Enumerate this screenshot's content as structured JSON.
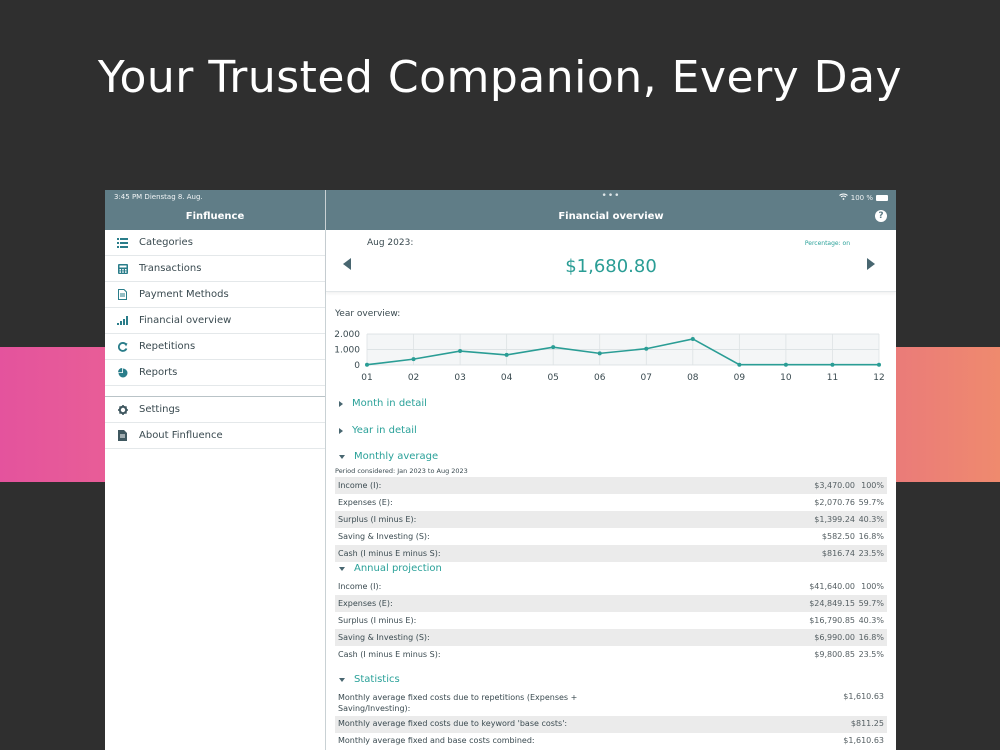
{
  "headline": "Your Trusted Companion, Every Day",
  "status": {
    "time": "3:45 PM  Dienstag 8. Aug.",
    "dots": "•••",
    "battery": "100 %"
  },
  "sidebar": {
    "title": "Finfluence",
    "items": [
      {
        "label": "Categories",
        "icon": "list-icon"
      },
      {
        "label": "Transactions",
        "icon": "calculator-icon"
      },
      {
        "label": "Payment Methods",
        "icon": "document-icon"
      },
      {
        "label": "Financial overview",
        "icon": "signal-bars-icon"
      },
      {
        "label": "Repetitions",
        "icon": "repeat-icon"
      },
      {
        "label": "Reports",
        "icon": "pie-chart-icon"
      }
    ],
    "bottom_items": [
      {
        "label": "Settings",
        "icon": "gear-icon"
      },
      {
        "label": "About Finfluence",
        "icon": "info-document-icon"
      }
    ]
  },
  "main": {
    "title": "Financial overview",
    "help": "?",
    "month_label": "Aug 2023:",
    "percentage_toggle": "Percentage: on",
    "amount": "$1,680.80",
    "year_overview_label": "Year overview:",
    "sections": {
      "month_detail": "Month in detail",
      "year_detail": "Year in detail",
      "monthly_average": "Monthly average",
      "annual_projection": "Annual projection",
      "statistics": "Statistics"
    },
    "period_note": "Period considered: Jan 2023 to Aug 2023",
    "monthly_average_rows": [
      {
        "label": "Income (I):",
        "value": "$3,470.00",
        "pct": "100%"
      },
      {
        "label": "Expenses (E):",
        "value": "$2,070.76",
        "pct": "59.7%"
      },
      {
        "label": "Surplus (I minus E):",
        "value": "$1,399.24",
        "pct": "40.3%"
      },
      {
        "label": "Saving & Investing (S):",
        "value": "$582.50",
        "pct": "16.8%"
      },
      {
        "label": "Cash (I minus E minus S):",
        "value": "$816.74",
        "pct": "23.5%"
      }
    ],
    "annual_projection_rows": [
      {
        "label": "Income (I):",
        "value": "$41,640.00",
        "pct": "100%"
      },
      {
        "label": "Expenses (E):",
        "value": "$24,849.15",
        "pct": "59.7%"
      },
      {
        "label": "Surplus (I minus E):",
        "value": "$16,790.85",
        "pct": "40.3%"
      },
      {
        "label": "Saving & Investing (S):",
        "value": "$6,990.00",
        "pct": "16.8%"
      },
      {
        "label": "Cash (I minus E minus S):",
        "value": "$9,800.85",
        "pct": "23.5%"
      }
    ],
    "statistics_rows": [
      {
        "label": "Monthly average fixed costs due to repetitions (Expenses + Saving/Investing):",
        "value": "$1,610.63"
      },
      {
        "label": "Monthly average fixed costs due to keyword 'base costs':",
        "value": "$811.25"
      },
      {
        "label": "Monthly average fixed and base costs combined:",
        "value": "$1,610.63"
      }
    ]
  },
  "colors": {
    "header": "#607d87",
    "accent": "#2a9d95",
    "background": "#2f2f2f"
  },
  "chart_data": {
    "type": "line",
    "categories": [
      "01",
      "02",
      "03",
      "04",
      "05",
      "06",
      "07",
      "08",
      "09",
      "10",
      "11",
      "12"
    ],
    "values": [
      20,
      380,
      900,
      650,
      1150,
      750,
      1050,
      1680,
      20,
      20,
      20,
      20
    ],
    "ylim": [
      0,
      2000
    ],
    "yticks": [
      "2.000",
      "1.000",
      "0"
    ],
    "grid": true,
    "series_color": "#2a9d95"
  }
}
